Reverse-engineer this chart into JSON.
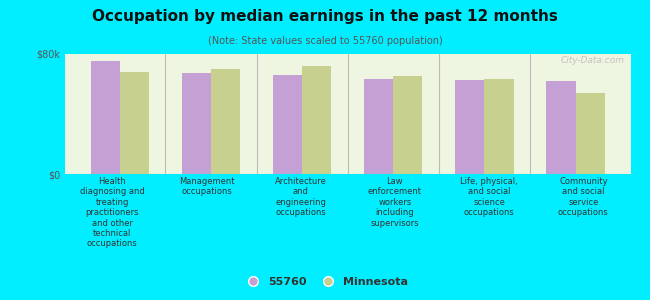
{
  "title": "Occupation by median earnings in the past 12 months",
  "subtitle": "(Note: State values scaled to 55760 population)",
  "background_color": "#00eeff",
  "plot_bg_color": "#eef5e0",
  "bar_color_55760": "#c4a0d4",
  "bar_color_mn": "#c8d090",
  "ylim": [
    0,
    80000
  ],
  "yticks": [
    0,
    80000
  ],
  "ytick_labels": [
    "$0",
    "$80k"
  ],
  "categories": [
    "Health\ndiagnosing and\ntreating\npractitioners\nand other\ntechnical\noccupations",
    "Management\noccupations",
    "Architecture\nand\nengineering\noccupations",
    "Law\nenforcement\nworkers\nincluding\nsupervisors",
    "Life, physical,\nand social\nscience\noccupations",
    "Community\nand social\nservice\noccupations"
  ],
  "values_55760": [
    75000,
    67000,
    66000,
    63500,
    62500,
    62000
  ],
  "values_mn": [
    68000,
    70000,
    72000,
    65000,
    63000,
    54000
  ],
  "legend_labels": [
    "55760",
    "Minnesota"
  ],
  "watermark": "City-Data.com"
}
